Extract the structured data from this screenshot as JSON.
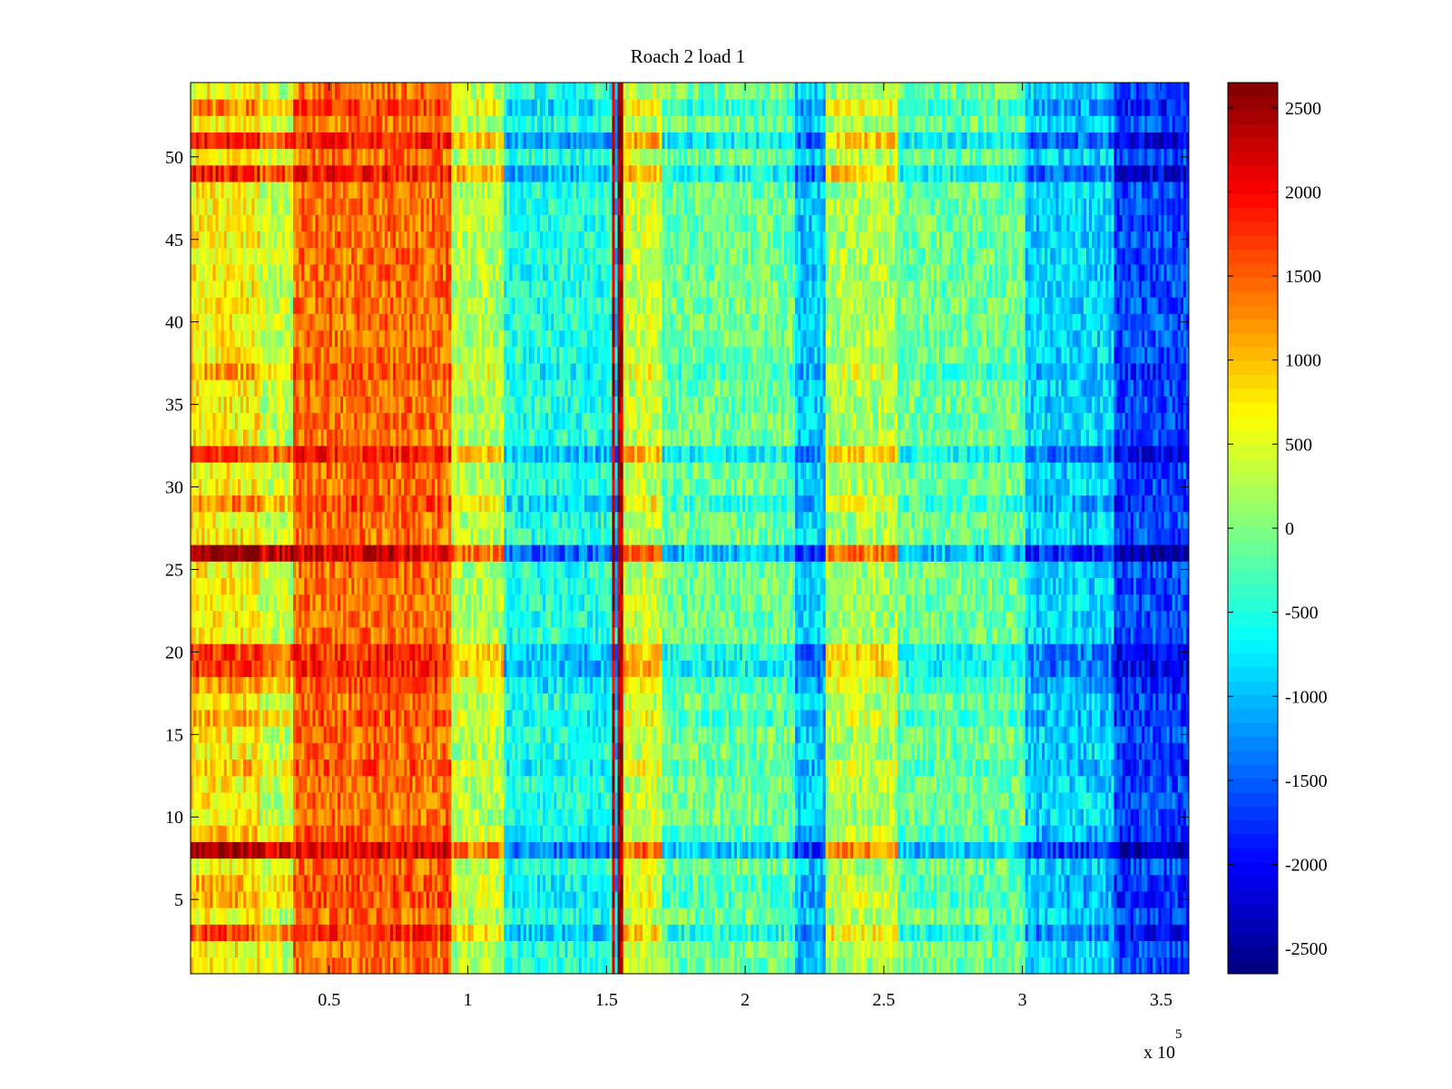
{
  "chart_data": {
    "type": "heatmap",
    "title": "Roach 2 load 1",
    "xlabel": "",
    "ylabel": "",
    "x_multiplier_label": "x 10",
    "x_multiplier_exponent": "5",
    "xlim": [
      0,
      360000
    ],
    "ylim": [
      0.5,
      54.5
    ],
    "x_ticks": [
      {
        "value": 50000,
        "label": "0.5"
      },
      {
        "value": 100000,
        "label": "1"
      },
      {
        "value": 150000,
        "label": "1.5"
      },
      {
        "value": 200000,
        "label": "2"
      },
      {
        "value": 250000,
        "label": "2.5"
      },
      {
        "value": 300000,
        "label": "3"
      },
      {
        "value": 350000,
        "label": "3.5"
      }
    ],
    "y_ticks": [
      {
        "value": 5,
        "label": "5"
      },
      {
        "value": 10,
        "label": "10"
      },
      {
        "value": 15,
        "label": "15"
      },
      {
        "value": 20,
        "label": "20"
      },
      {
        "value": 25,
        "label": "25"
      },
      {
        "value": 30,
        "label": "30"
      },
      {
        "value": 35,
        "label": "35"
      },
      {
        "value": 40,
        "label": "40"
      },
      {
        "value": 45,
        "label": "45"
      },
      {
        "value": 50,
        "label": "50"
      }
    ],
    "colormap": "jet",
    "clim": [
      -2650,
      2650
    ],
    "colorbar_ticks": [
      {
        "value": 2500,
        "label": "2500"
      },
      {
        "value": 2000,
        "label": "2000"
      },
      {
        "value": 1500,
        "label": "1500"
      },
      {
        "value": 1000,
        "label": "1000"
      },
      {
        "value": 500,
        "label": "500"
      },
      {
        "value": 0,
        "label": "0"
      },
      {
        "value": -500,
        "label": "-500"
      },
      {
        "value": -1000,
        "label": "-1000"
      },
      {
        "value": -1500,
        "label": "-1500"
      },
      {
        "value": -2000,
        "label": "-2000"
      },
      {
        "value": -2500,
        "label": "-2500"
      }
    ],
    "rows": 54,
    "column_profile": [
      {
        "x_start": 0,
        "x_end": 25000,
        "value": 700
      },
      {
        "x_start": 25000,
        "x_end": 37000,
        "value": 350
      },
      {
        "x_start": 37000,
        "x_end": 94000,
        "value": 1400
      },
      {
        "x_start": 94000,
        "x_end": 113000,
        "value": 250
      },
      {
        "x_start": 113000,
        "x_end": 152000,
        "value": -500
      },
      {
        "x_start": 152000,
        "x_end": 153000,
        "value": 2300
      },
      {
        "x_start": 153000,
        "x_end": 154000,
        "value": -850
      },
      {
        "x_start": 154000,
        "x_end": 156000,
        "value": 2400
      },
      {
        "x_start": 156000,
        "x_end": 170000,
        "value": 350
      },
      {
        "x_start": 170000,
        "x_end": 218000,
        "value": -100
      },
      {
        "x_start": 218000,
        "x_end": 229000,
        "value": -900
      },
      {
        "x_start": 229000,
        "x_end": 255000,
        "value": 200
      },
      {
        "x_start": 255000,
        "x_end": 301000,
        "value": -100
      },
      {
        "x_start": 301000,
        "x_end": 333000,
        "value": -850
      },
      {
        "x_start": 333000,
        "x_end": 360000,
        "value": -1600
      }
    ],
    "row_offsets": [
      {
        "row": 3,
        "offset": 900
      },
      {
        "row": 5,
        "offset": 400
      },
      {
        "row": 6,
        "offset": 350
      },
      {
        "row": 8,
        "offset": 1800
      },
      {
        "row": 9,
        "offset": 300
      },
      {
        "row": 13,
        "offset": 350
      },
      {
        "row": 16,
        "offset": 400
      },
      {
        "row": 18,
        "offset": 500
      },
      {
        "row": 19,
        "offset": 1100
      },
      {
        "row": 20,
        "offset": 1000
      },
      {
        "row": 26,
        "offset": 1900
      },
      {
        "row": 29,
        "offset": 600
      },
      {
        "row": 32,
        "offset": 1100
      },
      {
        "row": 37,
        "offset": 450
      },
      {
        "row": 49,
        "offset": 1200
      },
      {
        "row": 51,
        "offset": 1200
      },
      {
        "row": 53,
        "offset": 600
      }
    ]
  }
}
